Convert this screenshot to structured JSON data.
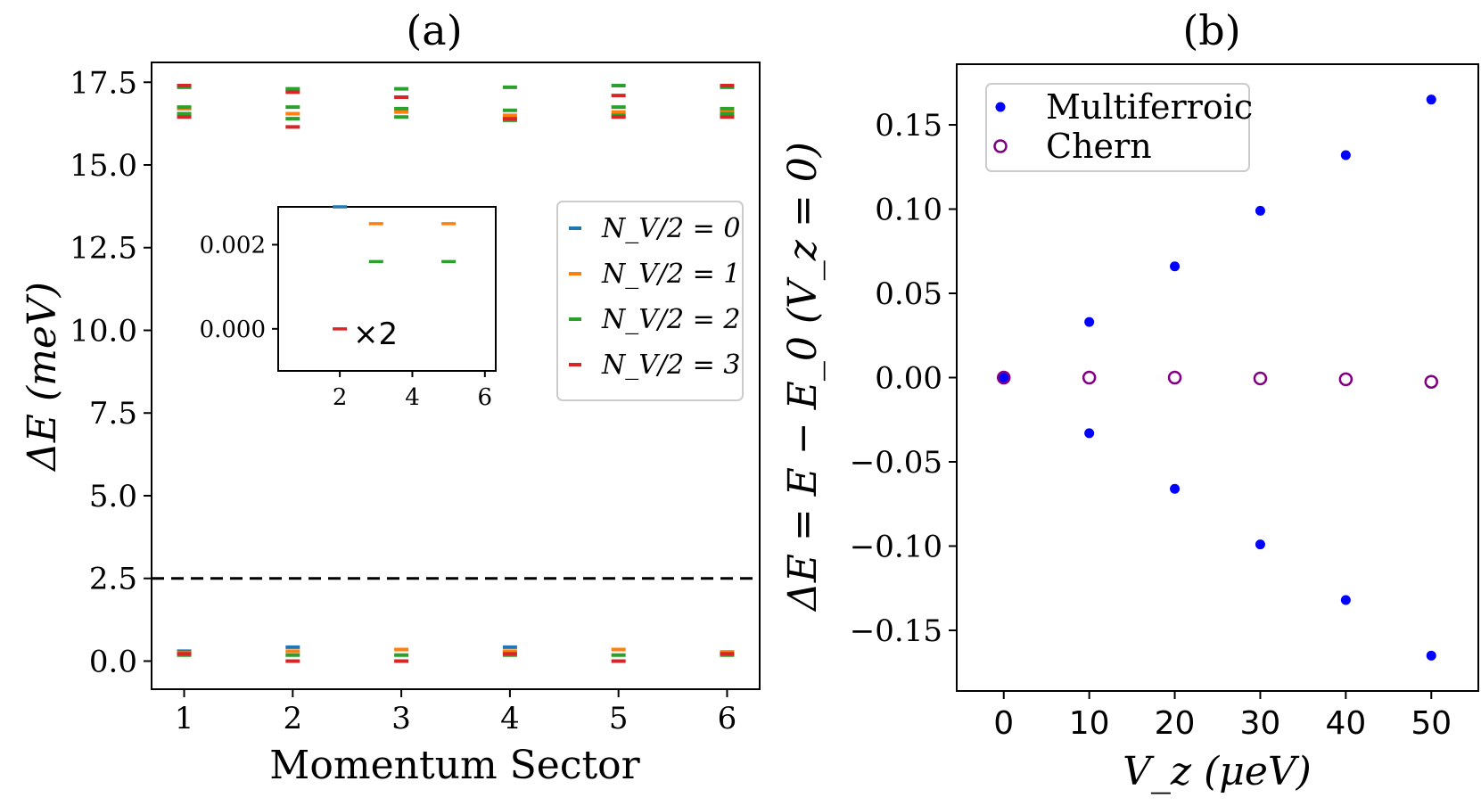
{
  "chart_data": [
    {
      "type": "scatter",
      "panel_label": "(a)",
      "xlabel": "Momentum Sector",
      "ylabel": "ΔE (meV)",
      "xlim": [
        0.7,
        6.3
      ],
      "ylim": [
        -0.85,
        18.1
      ],
      "xticks": [
        1,
        2,
        3,
        4,
        5,
        6
      ],
      "yticks": [
        0.0,
        2.5,
        5.0,
        7.5,
        10.0,
        12.5,
        15.0,
        17.5
      ],
      "ytick_labels": [
        "0.0",
        "2.5",
        "5.0",
        "7.5",
        "10.0",
        "12.5",
        "15.0",
        "17.5"
      ],
      "marker": "short horizontal line",
      "hline": {
        "y": 2.5,
        "style": "dashed",
        "color": "#000000"
      },
      "legend_position": "center-right",
      "series": [
        {
          "name": "N_V/2 = 0",
          "color": "#1f77b4",
          "points": [
            [
              1,
              0.3
            ],
            [
              2,
              0.42
            ],
            [
              4,
              0.42
            ]
          ]
        },
        {
          "name": "N_V/2 = 1",
          "color": "#ff7f0e",
          "points": [
            [
              1,
              0.25
            ],
            [
              2,
              0.3
            ],
            [
              3,
              0.35
            ],
            [
              4,
              0.3
            ],
            [
              5,
              0.35
            ],
            [
              6,
              0.28
            ],
            [
              1,
              16.7
            ],
            [
              2,
              16.55
            ],
            [
              3,
              16.6
            ],
            [
              4,
              16.5
            ],
            [
              5,
              16.6
            ],
            [
              6,
              16.6
            ]
          ]
        },
        {
          "name": "N_V/2 = 2",
          "color": "#2ca02c",
          "points": [
            [
              1,
              0.18
            ],
            [
              2,
              0.18
            ],
            [
              3,
              0.18
            ],
            [
              4,
              0.18
            ],
            [
              5,
              0.18
            ],
            [
              6,
              0.18
            ],
            [
              1,
              16.75
            ],
            [
              1,
              16.55
            ],
            [
              1,
              17.35
            ],
            [
              2,
              16.75
            ],
            [
              2,
              16.4
            ],
            [
              2,
              17.3
            ],
            [
              3,
              16.7
            ],
            [
              3,
              16.45
            ],
            [
              3,
              17.3
            ],
            [
              4,
              16.65
            ],
            [
              4,
              16.35
            ],
            [
              4,
              17.35
            ],
            [
              5,
              16.75
            ],
            [
              5,
              16.5
            ],
            [
              5,
              17.4
            ],
            [
              6,
              16.7
            ],
            [
              6,
              16.55
            ],
            [
              6,
              17.35
            ]
          ]
        },
        {
          "name": "N_V/2 = 3",
          "color": "#d62728",
          "points": [
            [
              1,
              0.22
            ],
            [
              2,
              0.0
            ],
            [
              3,
              0.0
            ],
            [
              4,
              0.22
            ],
            [
              5,
              0.0
            ],
            [
              6,
              0.22
            ],
            [
              1,
              17.4
            ],
            [
              1,
              16.45
            ],
            [
              2,
              17.2
            ],
            [
              2,
              16.15
            ],
            [
              3,
              17.05
            ],
            [
              4,
              16.4
            ],
            [
              5,
              17.1
            ],
            [
              5,
              16.45
            ],
            [
              6,
              17.4
            ],
            [
              6,
              16.45
            ]
          ]
        }
      ],
      "inset": {
        "xlim": [
          0.3,
          6.3
        ],
        "ylim": [
          -0.001,
          0.0029
        ],
        "xticks": [
          2,
          4,
          6
        ],
        "yticks": [
          0.0,
          0.002
        ],
        "ytick_labels": [
          "0.000",
          "0.002"
        ],
        "annotation": "×2",
        "series": [
          {
            "name": "N_V/2 = 0",
            "color": "#1f77b4",
            "points": [
              [
                2,
                0.0029
              ]
            ]
          },
          {
            "name": "N_V/2 = 1",
            "color": "#ff7f0e",
            "points": [
              [
                3,
                0.0025
              ],
              [
                5,
                0.0025
              ]
            ]
          },
          {
            "name": "N_V/2 = 2",
            "color": "#2ca02c",
            "points": [
              [
                3,
                0.0016
              ],
              [
                5,
                0.0016
              ]
            ]
          },
          {
            "name": "N_V/2 = 3",
            "color": "#d62728",
            "points": [
              [
                2,
                0.0
              ]
            ]
          }
        ]
      }
    },
    {
      "type": "scatter",
      "panel_label": "(b)",
      "xlabel": "V_z (μeV)",
      "ylabel": "ΔE = E − E_0 (V_z = 0)",
      "xlim": [
        -5.5,
        55.5
      ],
      "ylim": [
        -0.186,
        0.186
      ],
      "xticks": [
        0,
        10,
        20,
        30,
        40,
        50
      ],
      "yticks": [
        -0.15,
        -0.1,
        -0.05,
        0.0,
        0.05,
        0.1,
        0.15
      ],
      "ytick_labels": [
        "−0.15",
        "−0.10",
        "−0.05",
        "0.00",
        "0.05",
        "0.10",
        "0.15"
      ],
      "legend_position": "upper-left",
      "series": [
        {
          "name": "Multiferroic",
          "marker": "filled circle",
          "color": "#0000ff",
          "points": [
            [
              0,
              0.0
            ],
            [
              10,
              0.033
            ],
            [
              10,
              -0.033
            ],
            [
              20,
              0.066
            ],
            [
              20,
              -0.066
            ],
            [
              30,
              0.099
            ],
            [
              30,
              -0.099
            ],
            [
              40,
              0.132
            ],
            [
              40,
              -0.132
            ],
            [
              50,
              0.165
            ],
            [
              50,
              -0.165
            ]
          ]
        },
        {
          "name": "Chern",
          "marker": "open circle",
          "color": "#800080",
          "points": [
            [
              0,
              0.0
            ],
            [
              10,
              0.0
            ],
            [
              20,
              0.0
            ],
            [
              30,
              -0.0005
            ],
            [
              40,
              -0.001
            ],
            [
              50,
              -0.0025
            ]
          ]
        }
      ]
    }
  ]
}
